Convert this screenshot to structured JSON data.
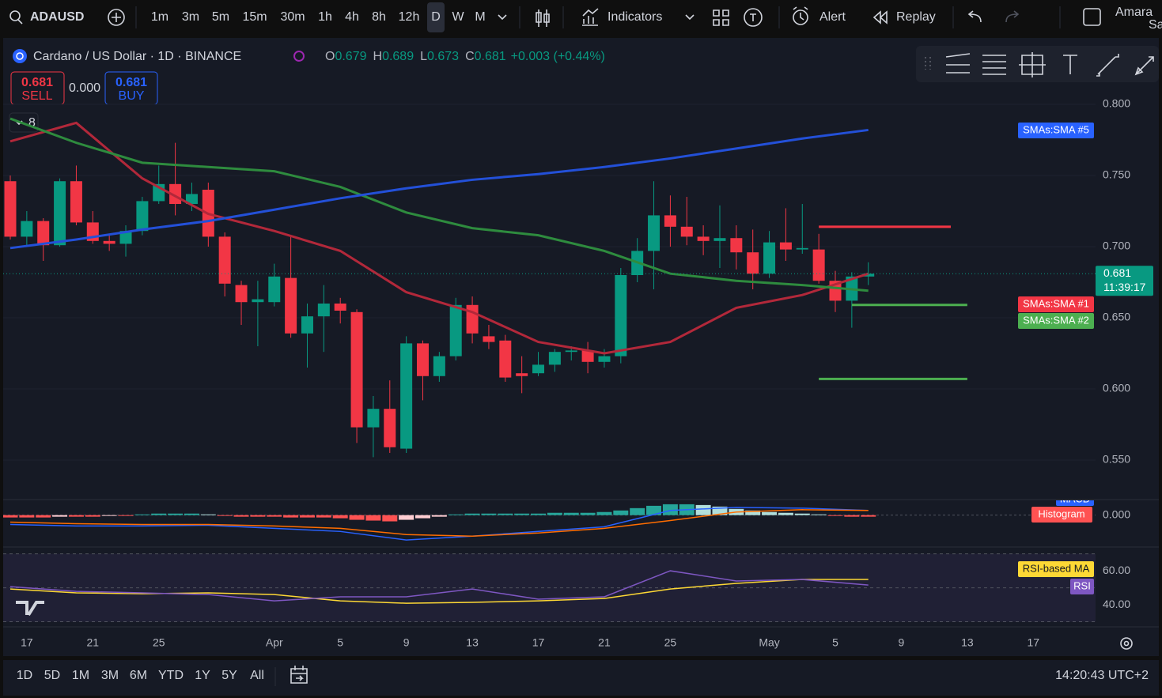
{
  "toolbar": {
    "symbol": "ADAUSD",
    "intervals": [
      "1m",
      "3m",
      "5m",
      "15m",
      "30m",
      "1h",
      "4h",
      "8h",
      "12h",
      "D",
      "W",
      "M"
    ],
    "active_interval": "D",
    "indicators": "Indicators",
    "alert": "Alert",
    "replay": "Replay",
    "user": "Amara",
    "user_sub": "Sav"
  },
  "legend": {
    "title": "Cardano / US Dollar · 1D · BINANCE",
    "ohlc": [
      {
        "label": "O",
        "value": 0.679
      },
      {
        "label": "H",
        "value": 0.689
      },
      {
        "label": "L",
        "value": 0.673
      },
      {
        "label": "C",
        "value": 0.681
      }
    ],
    "change": "+0.003 (+0.44%)",
    "collapsed_count": 8
  },
  "trade": {
    "sell_price": 0.681,
    "sell_label": "SELL",
    "spread": "0.000",
    "buy_price": 0.681,
    "buy_label": "BUY"
  },
  "chart_data": {
    "type": "candlestick",
    "categories": [
      "Mar 16",
      "Mar 17",
      "Mar 18",
      "Mar 19",
      "Mar 20",
      "Mar 21",
      "Mar 22",
      "Mar 23",
      "Mar 24",
      "Mar 25",
      "Mar 26",
      "Mar 27",
      "Mar 28",
      "Mar 29",
      "Mar 30",
      "Mar 31",
      "Apr 1",
      "Apr 2",
      "Apr 3",
      "Apr 4",
      "Apr 5",
      "Apr 6",
      "Apr 7",
      "Apr 8",
      "Apr 9",
      "Apr 10",
      "Apr 11",
      "Apr 12",
      "Apr 13",
      "Apr 14",
      "Apr 15",
      "Apr 16",
      "Apr 17",
      "Apr 18",
      "Apr 19",
      "Apr 20",
      "Apr 21",
      "Apr 22",
      "Apr 23",
      "Apr 24",
      "Apr 25",
      "Apr 26",
      "Apr 27",
      "Apr 28",
      "Apr 29",
      "Apr 30",
      "May 1",
      "May 2",
      "May 3",
      "May 4",
      "May 5",
      "May 6",
      "May 7",
      "May 8",
      "May 9",
      "May 10",
      "May 11",
      "May 12",
      "May 13",
      "May 14",
      "May 15",
      "May 16",
      "May 17"
    ],
    "open": [
      0.746,
      0.707,
      0.718,
      0.701,
      0.746,
      0.717,
      0.704,
      0.702,
      0.711,
      0.732,
      0.744,
      0.73,
      0.74,
      0.707,
      0.673,
      0.661,
      0.661,
      0.678,
      0.639,
      0.651,
      0.66,
      0.654,
      0.573,
      0.586,
      0.558,
      0.632,
      0.609,
      0.623,
      0.659,
      0.637,
      0.634,
      0.611,
      0.611,
      0.617,
      0.626,
      0.627,
      0.619,
      0.623,
      0.68,
      0.697,
      0.722,
      0.714,
      0.707,
      0.704,
      0.706,
      0.696,
      0.681,
      0.703,
      0.698,
      0.698,
      0.676,
      0.662,
      0.679,
      null,
      null,
      null,
      null,
      null,
      null,
      null,
      null,
      null,
      null
    ],
    "high": [
      0.75,
      0.725,
      0.72,
      0.748,
      0.757,
      0.725,
      0.708,
      0.715,
      0.735,
      0.757,
      0.773,
      0.745,
      0.745,
      0.71,
      0.676,
      0.676,
      0.688,
      0.708,
      0.66,
      0.673,
      0.664,
      0.656,
      0.595,
      0.606,
      0.637,
      0.634,
      0.626,
      0.664,
      0.665,
      0.645,
      0.638,
      0.623,
      0.626,
      0.628,
      0.63,
      0.633,
      0.628,
      0.685,
      0.706,
      0.746,
      0.736,
      0.735,
      0.715,
      0.729,
      0.715,
      0.712,
      0.711,
      0.727,
      0.73,
      0.709,
      0.683,
      0.682,
      0.689,
      null,
      null,
      null,
      null,
      null,
      null,
      null,
      null,
      null,
      null
    ],
    "low": [
      0.705,
      0.7,
      0.69,
      0.7,
      0.715,
      0.702,
      0.697,
      0.693,
      0.708,
      0.73,
      0.722,
      0.725,
      0.7,
      0.665,
      0.645,
      0.63,
      0.658,
      0.636,
      0.615,
      0.626,
      0.646,
      0.562,
      0.552,
      0.555,
      0.555,
      0.592,
      0.605,
      0.62,
      0.632,
      0.628,
      0.605,
      0.597,
      0.609,
      0.612,
      0.62,
      0.611,
      0.615,
      0.618,
      0.675,
      0.67,
      0.7,
      0.701,
      0.694,
      0.685,
      0.684,
      0.67,
      0.678,
      0.69,
      0.695,
      0.674,
      0.654,
      0.643,
      0.673,
      null,
      null,
      null,
      null,
      null,
      null,
      null,
      null,
      null,
      null
    ],
    "close": [
      0.707,
      0.718,
      0.701,
      0.746,
      0.717,
      0.704,
      0.702,
      0.711,
      0.732,
      0.744,
      0.73,
      0.737,
      0.707,
      0.674,
      0.661,
      0.663,
      0.679,
      0.639,
      0.651,
      0.66,
      0.655,
      0.573,
      0.586,
      0.559,
      0.632,
      0.609,
      0.623,
      0.659,
      0.639,
      0.633,
      0.608,
      0.609,
      0.617,
      0.626,
      0.627,
      0.619,
      0.623,
      0.68,
      0.697,
      0.722,
      0.714,
      0.707,
      0.704,
      0.706,
      0.696,
      0.681,
      0.703,
      0.698,
      0.699,
      0.676,
      0.662,
      0.679,
      0.681,
      null,
      null,
      null,
      null,
      null,
      null,
      null,
      null,
      null,
      null
    ],
    "up_color": "#089981",
    "down_color": "#f23645",
    "ylim": [
      0.5222,
      0.8467
    ],
    "yticks": [
      {
        "value": 0.8,
        "label": "0.800"
      },
      {
        "value": 0.75,
        "label": "0.750"
      },
      {
        "value": 0.7,
        "label": "0.700"
      },
      {
        "value": 0.65,
        "label": "0.650"
      },
      {
        "value": 0.6,
        "label": "0.600"
      },
      {
        "value": 0.55,
        "label": "0.550"
      }
    ],
    "xticks": [
      {
        "value": "Mar 17",
        "label": "17"
      },
      {
        "value": "Mar 21",
        "label": "21"
      },
      {
        "value": "Mar 25",
        "label": "25"
      },
      {
        "value": "Apr 1",
        "label": "Apr"
      },
      {
        "value": "Apr 5",
        "label": "5"
      },
      {
        "value": "Apr 9",
        "label": "9"
      },
      {
        "value": "Apr 13",
        "label": "13"
      },
      {
        "value": "Apr 17",
        "label": "17"
      },
      {
        "value": "Apr 21",
        "label": "21"
      },
      {
        "value": "Apr 25",
        "label": "25"
      },
      {
        "value": "May 1",
        "label": "May"
      },
      {
        "value": "May 5",
        "label": "5"
      },
      {
        "value": "May 9",
        "label": "9"
      },
      {
        "value": "May 13",
        "label": "13"
      },
      {
        "value": "May 17",
        "label": "17"
      }
    ],
    "series": [
      {
        "name": "SMAs:SMA #1",
        "color": "#b2283a",
        "tag_color": "#f23645",
        "x": [
          "Mar 16",
          "Mar 20",
          "Mar 24",
          "Mar 28",
          "Apr 1",
          "Apr 5",
          "Apr 9",
          "Apr 13",
          "Apr 17",
          "Apr 21",
          "Apr 25",
          "Apr 29",
          "May 3",
          "May 7"
        ],
        "values": [
          0.774,
          0.787,
          0.748,
          0.723,
          0.711,
          0.697,
          0.668,
          0.654,
          0.633,
          0.625,
          0.633,
          0.657,
          0.666,
          0.681
        ]
      },
      {
        "name": "SMAs:SMA #2",
        "color": "#2e8b3e",
        "tag_color": "#4caf50",
        "x": [
          "Mar 16",
          "Mar 20",
          "Mar 24",
          "Mar 28",
          "Apr 1",
          "Apr 5",
          "Apr 9",
          "Apr 13",
          "Apr 17",
          "Apr 21",
          "Apr 25",
          "Apr 29",
          "May 3",
          "May 7"
        ],
        "values": [
          0.79,
          0.773,
          0.759,
          0.756,
          0.753,
          0.742,
          0.724,
          0.713,
          0.708,
          0.697,
          0.681,
          0.676,
          0.673,
          0.669
        ]
      },
      {
        "name": "SMAs:SMA #5",
        "color": "#2350d8",
        "tag_color": "#2962ff",
        "x": [
          "Mar 16",
          "Mar 20",
          "Mar 24",
          "Mar 28",
          "Apr 1",
          "Apr 5",
          "Apr 9",
          "Apr 13",
          "Apr 17",
          "Apr 21",
          "Apr 25",
          "Apr 29",
          "May 3",
          "May 7"
        ],
        "values": [
          0.699,
          0.705,
          0.712,
          0.718,
          0.726,
          0.734,
          0.741,
          0.747,
          0.751,
          0.756,
          0.762,
          0.769,
          0.776,
          0.782
        ]
      }
    ],
    "drawings": [
      {
        "color": "#f23645",
        "x": [
          "May 4",
          "May 12"
        ],
        "value": 0.714
      },
      {
        "color": "#4caf50",
        "x": [
          "May 6",
          "May 13"
        ],
        "value": 0.659
      },
      {
        "color": "#4caf50",
        "x": [
          "May 4",
          "May 13"
        ],
        "value": 0.607
      }
    ],
    "last_price": {
      "value": 0.681,
      "countdown": "11:39:17"
    },
    "panes": [
      {
        "type": "macd",
        "ylim": [
          -0.039,
          0.019
        ],
        "yticks": [
          {
            "value": 0,
            "label": "0.000"
          }
        ],
        "histogram": {
          "name": "Histogram",
          "values": [
            -0.003,
            -0.003,
            -0.003,
            -0.002,
            -0.002,
            -0.002,
            -0.001,
            -0.001,
            0.001,
            0.002,
            0.002,
            0.002,
            0.001,
            -0.001,
            -0.002,
            -0.002,
            -0.002,
            -0.003,
            -0.003,
            -0.003,
            -0.004,
            -0.006,
            -0.007,
            -0.008,
            -0.006,
            -0.004,
            -0.002,
            0.001,
            0.002,
            0.002,
            0.002,
            0.002,
            0.002,
            0.003,
            0.003,
            0.003,
            0.004,
            0.006,
            0.009,
            0.012,
            0.014,
            0.014,
            0.013,
            0.011,
            0.008,
            0.006,
            0.004,
            0.003,
            0.002,
            0.001,
            -0.001,
            -0.002,
            -0.002,
            null,
            null,
            null,
            null,
            null,
            null,
            null,
            null,
            null,
            null
          ],
          "colors": {
            "up": "#26a69a",
            "up_fading": "#b2dfdb",
            "down": "#ff5252",
            "down_fading": "#ffcdd2"
          }
        },
        "series": [
          {
            "name": "MACD",
            "color": "#2962ff",
            "x": [
              "Mar 16",
              "Mar 20",
              "Mar 24",
              "Mar 28",
              "Apr 1",
              "Apr 5",
              "Apr 9",
              "Apr 13",
              "Apr 17",
              "Apr 21",
              "Apr 25",
              "Apr 29",
              "May 3",
              "May 7"
            ],
            "values": [
              -0.012,
              -0.014,
              -0.014,
              -0.013,
              -0.017,
              -0.021,
              -0.032,
              -0.027,
              -0.021,
              -0.015,
              0.006,
              0.01,
              0.009,
              0.006
            ]
          },
          {
            "color": "#ff6d00",
            "x": [
              "Mar 16",
              "Mar 20",
              "Mar 24",
              "Mar 28",
              "Apr 1",
              "Apr 5",
              "Apr 9",
              "Apr 13",
              "Apr 17",
              "Apr 21",
              "Apr 25",
              "Apr 29",
              "May 3",
              "May 7"
            ],
            "values": [
              -0.009,
              -0.011,
              -0.012,
              -0.012,
              -0.014,
              -0.017,
              -0.025,
              -0.027,
              -0.023,
              -0.017,
              -0.007,
              0.004,
              0.007,
              0.006
            ]
          }
        ]
      },
      {
        "type": "rsi",
        "ylim": [
          28.4,
          72.6
        ],
        "yticks": [
          {
            "value": 60,
            "label": "60.00"
          },
          {
            "value": 40,
            "label": "40.00"
          }
        ],
        "levels": [
          70,
          50,
          30
        ],
        "band_color": "#7e57c2",
        "series": [
          {
            "name": "RSI-based MA",
            "color": "#fdd835",
            "x": [
              "Mar 16",
              "Mar 20",
              "Mar 24",
              "Mar 28",
              "Apr 1",
              "Apr 5",
              "Apr 9",
              "Apr 13",
              "Apr 17",
              "Apr 21",
              "Apr 25",
              "Apr 29",
              "May 3",
              "May 7"
            ],
            "values": [
              49.3,
              47,
              46.5,
              47,
              46,
              42.3,
              40.9,
              41.4,
              42.3,
              43.7,
              49.3,
              52.6,
              54.9,
              54.9
            ]
          },
          {
            "name": "RSI",
            "color": "#7e57c2",
            "x": [
              "Mar 16",
              "Mar 20",
              "Mar 24",
              "Mar 28",
              "Apr 1",
              "Apr 5",
              "Apr 9",
              "Apr 13",
              "Apr 17",
              "Apr 21",
              "Apr 25",
              "Apr 29",
              "May 3",
              "May 7"
            ],
            "values": [
              50.7,
              47.9,
              47,
              46,
              42.3,
              44.7,
              44.7,
              49.3,
              43.3,
              44.7,
              60,
              54,
              54.9,
              51.6
            ]
          }
        ]
      }
    ]
  },
  "bottom_bar": {
    "ranges": [
      "1D",
      "5D",
      "1M",
      "3M",
      "6M",
      "YTD",
      "1Y",
      "5Y",
      "All"
    ],
    "time": "14:20:43 UTC+2"
  }
}
